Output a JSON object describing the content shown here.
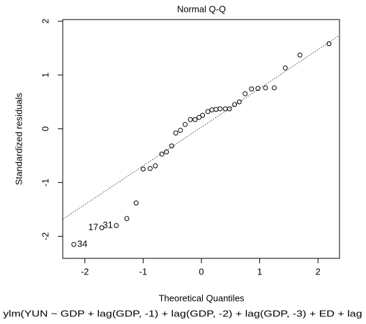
{
  "chart_data": {
    "type": "scatter",
    "title": "Normal Q-Q",
    "xlabel": "Theoretical Quantiles",
    "ylabel": "Standardized residuals",
    "subtitle": "ylm(YUN ~ GDP + lag(GDP, -1) + lag(GDP, -2) + lag(GDP, -3) + ED + lag",
    "x": [
      -2.19,
      -1.71,
      -1.46,
      -1.28,
      -1.12,
      -1.0,
      -0.88,
      -0.79,
      -0.68,
      -0.6,
      -0.51,
      -0.44,
      -0.36,
      -0.28,
      -0.19,
      -0.11,
      -0.04,
      0.02,
      0.11,
      0.18,
      0.25,
      0.32,
      0.41,
      0.48,
      0.57,
      0.65,
      0.75,
      0.86,
      0.97,
      1.1,
      1.25,
      1.44,
      1.69,
      2.19
    ],
    "values": [
      -2.15,
      -1.84,
      -1.8,
      -1.67,
      -1.38,
      -0.75,
      -0.74,
      -0.69,
      -0.47,
      -0.43,
      -0.32,
      -0.08,
      -0.03,
      0.08,
      0.17,
      0.17,
      0.21,
      0.25,
      0.32,
      0.35,
      0.36,
      0.37,
      0.37,
      0.37,
      0.45,
      0.5,
      0.65,
      0.74,
      0.75,
      0.76,
      0.76,
      1.13,
      1.37,
      1.58
    ],
    "point_labels": [
      "34",
      "17",
      "31",
      null,
      null,
      null,
      null,
      null,
      null,
      null,
      null,
      null,
      null,
      null,
      null,
      null,
      null,
      null,
      null,
      null,
      null,
      null,
      null,
      null,
      null,
      null,
      null,
      null,
      null,
      null,
      null,
      null,
      null,
      null
    ],
    "reference_line": {
      "intercept": 0.03,
      "slope": 0.72
    },
    "xlim": [
      -2.38,
      2.37
    ],
    "ylim": [
      -2.41,
      2.03
    ],
    "xticks": [
      -2,
      -1,
      0,
      1,
      2
    ],
    "yticks": [
      -2,
      -1,
      0,
      1,
      2
    ],
    "color": "#000000"
  }
}
